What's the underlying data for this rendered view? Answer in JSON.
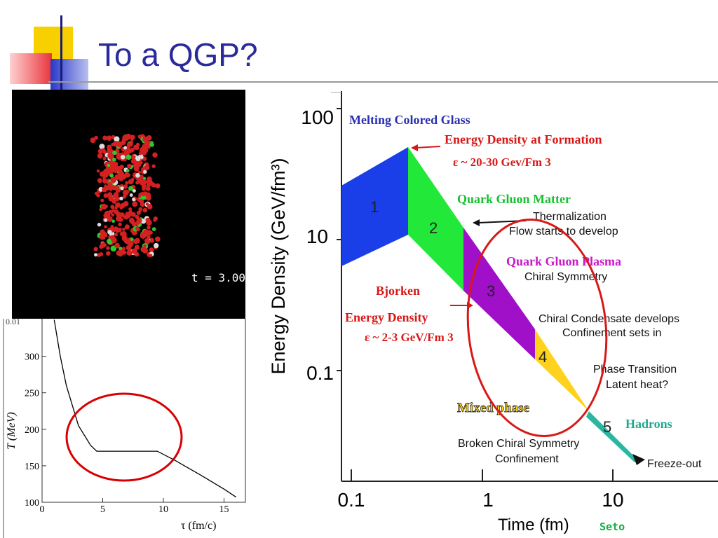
{
  "slide": {
    "title": "To a QGP?"
  },
  "simulation": {
    "time_label": "t = 3.00"
  },
  "temperature_plot": {
    "top_tick_clipped": "0.01",
    "ylabel": "T (MeV)",
    "xlabel": "τ (fm/c)",
    "y_ticks": [
      "100",
      "150",
      "200",
      "250",
      "300"
    ],
    "x_ticks": [
      "0",
      "5",
      "10",
      "15"
    ]
  },
  "energy_plot": {
    "ylabel": "Energy Density (GeV/fm³)",
    "xlabel": "Time (fm)",
    "credit": "Seto",
    "y_ticks": [
      "100",
      "10",
      "0.1"
    ],
    "x_ticks": [
      "0.1",
      "1",
      "10"
    ],
    "annotations": {
      "melting": "Melting Colored Glass",
      "formation": "Energy Density at Formation",
      "formation_val": "ε ~ 20-30 Gev/Fm 3",
      "qgm": "Quark Gluon Matter",
      "thermalization": "Thermalization",
      "flow": "Flow starts to develop",
      "qgp": "Quark Gluon Plasma",
      "chiral_sym": "Chiral Symmetry",
      "bjorken": "Bjorken",
      "bjorken_ed": "Energy Density",
      "bjorken_val": "ε ~ 2-3 GeV/Fm 3",
      "chiral_cond": "Chiral Condensate develops",
      "confinement": "Confinement sets in",
      "phase_trans": "Phase Transition",
      "latent": "Latent heat?",
      "mixed": "Mixed phase",
      "hadrons": "Hadrons",
      "broken": "Broken Chiral Symmetry",
      "confinement2": "Confinement",
      "freeze": "Freeze-out",
      "r1": "1",
      "r2": "2",
      "r3": "3",
      "r4": "4",
      "r5": "5"
    }
  },
  "chart_data": [
    {
      "type": "line",
      "title": "",
      "xlabel": "τ (fm/c)",
      "ylabel": "T (MeV)",
      "xlim": [
        0,
        16
      ],
      "ylim": [
        100,
        350
      ],
      "series": [
        {
          "x": [
            1.0,
            1.5,
            2.0,
            3.0,
            4.0,
            4.5,
            6.0,
            8.0,
            9.5,
            11.0,
            13.0,
            15.0,
            16.0
          ],
          "y": [
            350,
            300,
            260,
            205,
            178,
            170,
            170,
            170,
            170,
            157,
            138,
            118,
            107
          ]
        }
      ],
      "annotations": [
        "red ellipse around plateau at T≈170 MeV"
      ]
    },
    {
      "type": "area",
      "title": "",
      "xlabel": "Time (fm)",
      "ylabel": "Energy Density (GeV/fm³)",
      "xscale": "log",
      "yscale": "log",
      "x_ticks": [
        0.1,
        1,
        10
      ],
      "y_ticks": [
        100,
        10,
        0.1
      ],
      "stages": [
        {
          "name": "1",
          "color": "#1a3ee8"
        },
        {
          "name": "2",
          "color": "#22e83a"
        },
        {
          "name": "3",
          "color": "#a010c8"
        },
        {
          "name": "4",
          "color": "#ffd21e"
        },
        {
          "name": "5",
          "color": "#28b8a0"
        }
      ]
    }
  ]
}
